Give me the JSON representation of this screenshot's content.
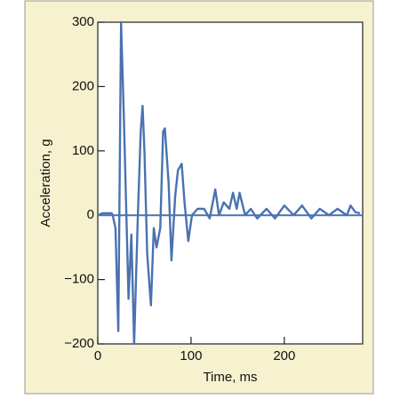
{
  "chart_data": {
    "type": "line",
    "xlabel": "Time, ms",
    "ylabel": "Acceleration, g",
    "xlim": [
      0,
      284
    ],
    "ylim": [
      -200,
      300
    ],
    "xticks": [
      0,
      100,
      200
    ],
    "yticks": [
      {
        "value": -200,
        "label": "−200"
      },
      {
        "value": -100,
        "label": "−100"
      },
      0,
      100,
      200,
      300
    ],
    "series": [
      {
        "color": "#4a72b0",
        "x": [
          0,
          5,
          10,
          15,
          16,
          19,
          22,
          25,
          28,
          33,
          36,
          39,
          41,
          43,
          46,
          48,
          50,
          53,
          57,
          60,
          63,
          67,
          70,
          72,
          76,
          79,
          83,
          86,
          90,
          93,
          97,
          101,
          107,
          114,
          120,
          126,
          130,
          135,
          141,
          145,
          149,
          152,
          158,
          164,
          171,
          181,
          190,
          200,
          210,
          219,
          229,
          238,
          248,
          257,
          267,
          271,
          276,
          281
        ],
        "values": [
          0,
          3,
          3,
          3,
          0,
          -20,
          -180,
          300,
          150,
          -130,
          -30,
          -200,
          -100,
          0,
          130,
          170,
          100,
          -60,
          -140,
          -20,
          -50,
          -20,
          130,
          135,
          50,
          -70,
          30,
          70,
          80,
          20,
          -40,
          0,
          10,
          10,
          -5,
          40,
          0,
          20,
          10,
          35,
          10,
          35,
          0,
          10,
          -5,
          10,
          -5,
          15,
          0,
          15,
          -5,
          10,
          0,
          10,
          0,
          15,
          5,
          3
        ]
      }
    ]
  }
}
